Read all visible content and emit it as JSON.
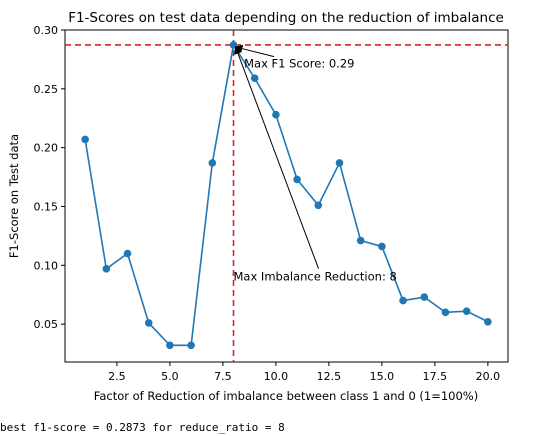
{
  "chart_data": {
    "type": "line",
    "title": "F1-Scores on test data depending on the reduction of imbalance",
    "xlabel": "Factor of Reduction of imbalance between class 1 and 0 (1=100%)",
    "ylabel": "F1-Score on Test data",
    "xlim": [
      0.05,
      20.95
    ],
    "ylim": [
      0.0178,
      0.3
    ],
    "xticks": [
      2.5,
      5.0,
      7.5,
      10.0,
      12.5,
      15.0,
      17.5,
      20.0
    ],
    "xtick_labels": [
      "2.5",
      "5.0",
      "7.5",
      "10.0",
      "12.5",
      "15.0",
      "17.5",
      "20.0"
    ],
    "yticks": [
      0.05,
      0.1,
      0.15,
      0.2,
      0.25,
      0.3
    ],
    "ytick_labels": [
      "0.05",
      "0.10",
      "0.15",
      "0.20",
      "0.25",
      "0.30"
    ],
    "grid": false,
    "series": [
      {
        "x": [
          1,
          2,
          3,
          4,
          5,
          6,
          7,
          8,
          9,
          10,
          11,
          12,
          13,
          14,
          15,
          16,
          17,
          18,
          19,
          20
        ],
        "values": [
          0.207,
          0.097,
          0.11,
          0.051,
          0.032,
          0.032,
          0.187,
          0.2873,
          0.259,
          0.228,
          0.173,
          0.151,
          0.187,
          0.121,
          0.116,
          0.07,
          0.073,
          0.06,
          0.061,
          0.052
        ],
        "color": "#1f77b4"
      }
    ],
    "reference_lines": {
      "horizontal": 0.2873,
      "vertical": 8,
      "color": "#d62728"
    },
    "annotations": [
      {
        "text": "Max F1 Score: 0.29",
        "x": 8,
        "y": 0.2873,
        "text_x": 8.5,
        "text_y": 0.268
      },
      {
        "text": "Max Imbalance Reduction: 8",
        "x": 8,
        "y": 0.2873,
        "text_x": 8.0,
        "text_y": 0.087
      }
    ]
  },
  "output_text": "best f1-score = 0.2873 for reduce_ratio = 8"
}
